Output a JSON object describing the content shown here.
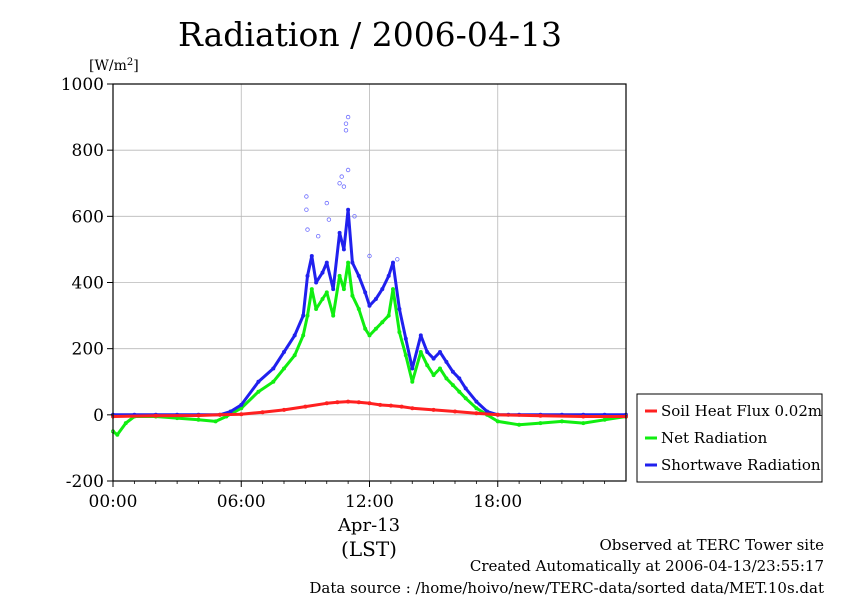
{
  "chart_data": {
    "type": "line",
    "title": "Radiation / 2006-04-13",
    "ylabel_base": "[W/m",
    "ylabel_sup": "2",
    "ylabel_close": "]",
    "xlabel_date": "Apr-13",
    "xlabel_tz": "(LST)",
    "xlim": [
      0,
      24
    ],
    "ylim": [
      -200,
      1000
    ],
    "x_ticks": [
      {
        "value": 0,
        "label": "00:00"
      },
      {
        "value": 6,
        "label": "06:00"
      },
      {
        "value": 12,
        "label": "12:00"
      },
      {
        "value": 18,
        "label": "18:00"
      }
    ],
    "y_ticks": [
      {
        "value": -200,
        "label": "-200"
      },
      {
        "value": 0,
        "label": "0"
      },
      {
        "value": 200,
        "label": "200"
      },
      {
        "value": 400,
        "label": "400"
      },
      {
        "value": 600,
        "label": "600"
      },
      {
        "value": 800,
        "label": "800"
      },
      {
        "value": 1000,
        "label": "1000"
      }
    ],
    "grid": true,
    "legend_position": "right",
    "series": [
      {
        "name": "Soil Heat Flux 0.02m",
        "color": "#ff2020",
        "x": [
          0,
          2,
          4,
          5,
          6,
          7,
          8,
          9,
          10,
          10.5,
          11,
          11.5,
          12,
          12.5,
          13,
          13.5,
          14,
          15,
          16,
          17,
          18,
          20,
          22,
          24
        ],
        "values": [
          -5,
          -3,
          -2,
          0,
          2,
          8,
          15,
          25,
          35,
          38,
          40,
          38,
          35,
          30,
          28,
          25,
          20,
          15,
          10,
          5,
          0,
          -3,
          -5,
          -5
        ]
      },
      {
        "name": "Net Radiation",
        "color": "#10ee10",
        "x": [
          0,
          0.2,
          0.6,
          1,
          2,
          3,
          4,
          4.8,
          5.3,
          6,
          6.8,
          7.5,
          8,
          8.5,
          8.9,
          9.1,
          9.3,
          9.5,
          9.8,
          10,
          10.3,
          10.6,
          10.8,
          11,
          11.2,
          11.5,
          11.8,
          12,
          12.3,
          12.6,
          12.9,
          13.1,
          13.4,
          13.7,
          14,
          14.4,
          14.7,
          15,
          15.3,
          15.6,
          15.9,
          16.2,
          16.5,
          17,
          17.5,
          18,
          19,
          20,
          21,
          22,
          23,
          24
        ],
        "values": [
          -50,
          -60,
          -25,
          -5,
          -5,
          -10,
          -15,
          -20,
          -5,
          20,
          70,
          100,
          140,
          180,
          240,
          300,
          380,
          320,
          350,
          370,
          300,
          420,
          380,
          460,
          360,
          320,
          260,
          240,
          260,
          280,
          300,
          380,
          250,
          180,
          100,
          190,
          150,
          120,
          140,
          110,
          90,
          70,
          50,
          20,
          0,
          -20,
          -30,
          -25,
          -20,
          -25,
          -15,
          -5
        ]
      },
      {
        "name": "Shortwave Radiation",
        "color": "#2020ee",
        "x": [
          0,
          1,
          2,
          3,
          4,
          5,
          5.5,
          6,
          6.8,
          7.5,
          8,
          8.5,
          8.9,
          9.1,
          9.3,
          9.5,
          9.8,
          10,
          10.3,
          10.6,
          10.8,
          11,
          11.2,
          11.5,
          11.8,
          12,
          12.3,
          12.6,
          12.9,
          13.1,
          13.4,
          13.7,
          14,
          14.4,
          14.7,
          15,
          15.3,
          15.6,
          15.9,
          16.2,
          16.5,
          17,
          17.5,
          18,
          18.5,
          19,
          20,
          21,
          22,
          23,
          24
        ],
        "values": [
          0,
          0,
          0,
          0,
          0,
          0,
          10,
          30,
          100,
          140,
          190,
          240,
          300,
          420,
          480,
          400,
          430,
          460,
          380,
          550,
          500,
          620,
          460,
          420,
          370,
          330,
          350,
          380,
          420,
          460,
          320,
          230,
          140,
          240,
          190,
          170,
          190,
          160,
          130,
          110,
          80,
          40,
          10,
          0,
          0,
          0,
          0,
          0,
          0,
          0,
          0
        ]
      }
    ],
    "spike_points": {
      "x": [
        9.05,
        9.05,
        9.1,
        9.6,
        10.0,
        10.1,
        10.6,
        10.7,
        10.8,
        10.9,
        10.9,
        11.0,
        11.0,
        11.3,
        12.0,
        13.3
      ],
      "values": [
        660,
        620,
        560,
        540,
        640,
        590,
        700,
        720,
        690,
        880,
        860,
        740,
        900,
        600,
        480,
        470
      ]
    }
  },
  "footer": {
    "observed": "Observed at TERC Tower site",
    "created": "Created Automatically at 2006-04-13/23:55:17",
    "source": "Data source : /home/hoivo/new/TERC-data/sorted data/MET.10s.dat"
  }
}
